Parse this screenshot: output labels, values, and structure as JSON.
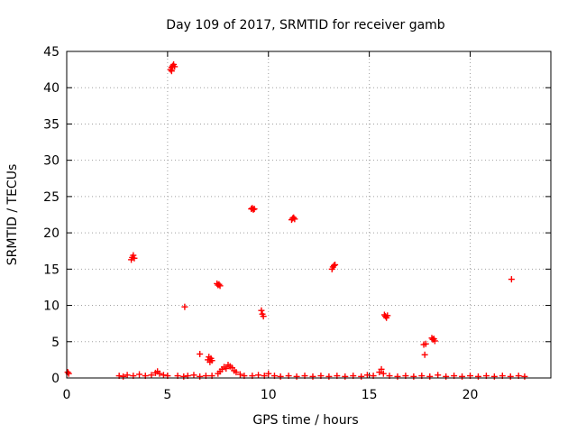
{
  "chart_data": {
    "type": "scatter",
    "title": "Day 109 of 2017, SRMTID for receiver gamb",
    "xlabel": "GPS time / hours",
    "ylabel": "SRMTID / TECUs",
    "xlim": [
      0,
      24
    ],
    "ylim": [
      0,
      45
    ],
    "xticks": [
      0,
      5,
      10,
      15,
      20
    ],
    "yticks": [
      0,
      5,
      10,
      15,
      20,
      25,
      30,
      35,
      40,
      45
    ],
    "grid": true,
    "marker": "+",
    "marker_color": "#ff0000",
    "series": [
      {
        "points": [
          [
            0.05,
            0.8
          ],
          [
            0.1,
            0.6
          ],
          [
            2.6,
            0.3
          ],
          [
            2.8,
            0.2
          ],
          [
            3.0,
            0.4
          ],
          [
            3.3,
            0.3
          ],
          [
            3.6,
            0.5
          ],
          [
            3.9,
            0.3
          ],
          [
            4.2,
            0.4
          ],
          [
            4.4,
            0.7
          ],
          [
            4.5,
            0.9
          ],
          [
            4.6,
            0.6
          ],
          [
            4.8,
            0.4
          ],
          [
            5.0,
            0.3
          ],
          [
            5.5,
            0.3
          ],
          [
            5.8,
            0.2
          ],
          [
            6.0,
            0.3
          ],
          [
            6.3,
            0.4
          ],
          [
            6.6,
            0.2
          ],
          [
            6.9,
            0.3
          ],
          [
            7.2,
            0.3
          ],
          [
            7.5,
            0.6
          ],
          [
            7.6,
            0.9
          ],
          [
            7.7,
            1.2
          ],
          [
            7.8,
            1.5
          ],
          [
            7.9,
            1.3
          ],
          [
            8.0,
            1.8
          ],
          [
            8.1,
            1.6
          ],
          [
            8.2,
            1.4
          ],
          [
            8.3,
            1.0
          ],
          [
            8.4,
            0.8
          ],
          [
            8.6,
            0.5
          ],
          [
            8.8,
            0.3
          ],
          [
            9.2,
            0.3
          ],
          [
            9.5,
            0.4
          ],
          [
            9.8,
            0.3
          ],
          [
            10.0,
            0.6
          ],
          [
            10.3,
            0.3
          ],
          [
            10.6,
            0.2
          ],
          [
            11.0,
            0.3
          ],
          [
            11.4,
            0.2
          ],
          [
            11.8,
            0.3
          ],
          [
            12.2,
            0.2
          ],
          [
            12.6,
            0.3
          ],
          [
            13.0,
            0.2
          ],
          [
            13.4,
            0.3
          ],
          [
            13.8,
            0.2
          ],
          [
            14.2,
            0.3
          ],
          [
            14.6,
            0.2
          ],
          [
            14.9,
            0.4
          ],
          [
            15.2,
            0.3
          ],
          [
            15.5,
            0.8
          ],
          [
            15.6,
            1.2
          ],
          [
            15.7,
            0.6
          ],
          [
            16.0,
            0.3
          ],
          [
            16.4,
            0.2
          ],
          [
            16.8,
            0.3
          ],
          [
            17.2,
            0.2
          ],
          [
            17.6,
            0.3
          ],
          [
            18.0,
            0.2
          ],
          [
            18.4,
            0.4
          ],
          [
            18.8,
            0.2
          ],
          [
            19.2,
            0.3
          ],
          [
            19.6,
            0.2
          ],
          [
            20.0,
            0.3
          ],
          [
            20.4,
            0.2
          ],
          [
            20.8,
            0.3
          ],
          [
            21.2,
            0.2
          ],
          [
            21.6,
            0.3
          ],
          [
            22.0,
            0.2
          ],
          [
            22.4,
            0.3
          ],
          [
            22.7,
            0.2
          ],
          [
            3.2,
            16.3
          ],
          [
            3.25,
            16.6
          ],
          [
            3.3,
            16.9
          ],
          [
            3.35,
            16.5
          ],
          [
            5.15,
            42.5
          ],
          [
            5.2,
            42.8
          ],
          [
            5.25,
            43.0
          ],
          [
            5.3,
            43.2
          ],
          [
            5.35,
            42.9
          ],
          [
            5.2,
            42.3
          ],
          [
            5.85,
            9.8
          ],
          [
            6.6,
            3.3
          ],
          [
            7.0,
            2.5
          ],
          [
            7.05,
            2.9
          ],
          [
            7.1,
            2.2
          ],
          [
            7.15,
            2.7
          ],
          [
            7.2,
            2.4
          ],
          [
            7.45,
            13.0
          ],
          [
            7.5,
            12.8
          ],
          [
            7.55,
            12.9
          ],
          [
            7.6,
            12.7
          ],
          [
            9.15,
            23.3
          ],
          [
            9.2,
            23.4
          ],
          [
            9.25,
            23.2
          ],
          [
            9.3,
            23.3
          ],
          [
            9.65,
            9.3
          ],
          [
            9.7,
            8.8
          ],
          [
            9.75,
            8.5
          ],
          [
            11.15,
            21.8
          ],
          [
            11.2,
            22.0
          ],
          [
            11.25,
            22.1
          ],
          [
            11.3,
            21.9
          ],
          [
            13.15,
            15.0
          ],
          [
            13.2,
            15.3
          ],
          [
            13.25,
            15.5
          ],
          [
            13.3,
            15.6
          ],
          [
            15.75,
            8.7
          ],
          [
            15.8,
            8.5
          ],
          [
            15.85,
            8.3
          ],
          [
            15.9,
            8.6
          ],
          [
            17.7,
            4.6
          ],
          [
            17.75,
            3.2
          ],
          [
            17.8,
            4.7
          ],
          [
            18.1,
            5.5
          ],
          [
            18.15,
            5.3
          ],
          [
            18.2,
            5.4
          ],
          [
            18.25,
            5.1
          ],
          [
            22.05,
            13.6
          ]
        ]
      }
    ]
  }
}
